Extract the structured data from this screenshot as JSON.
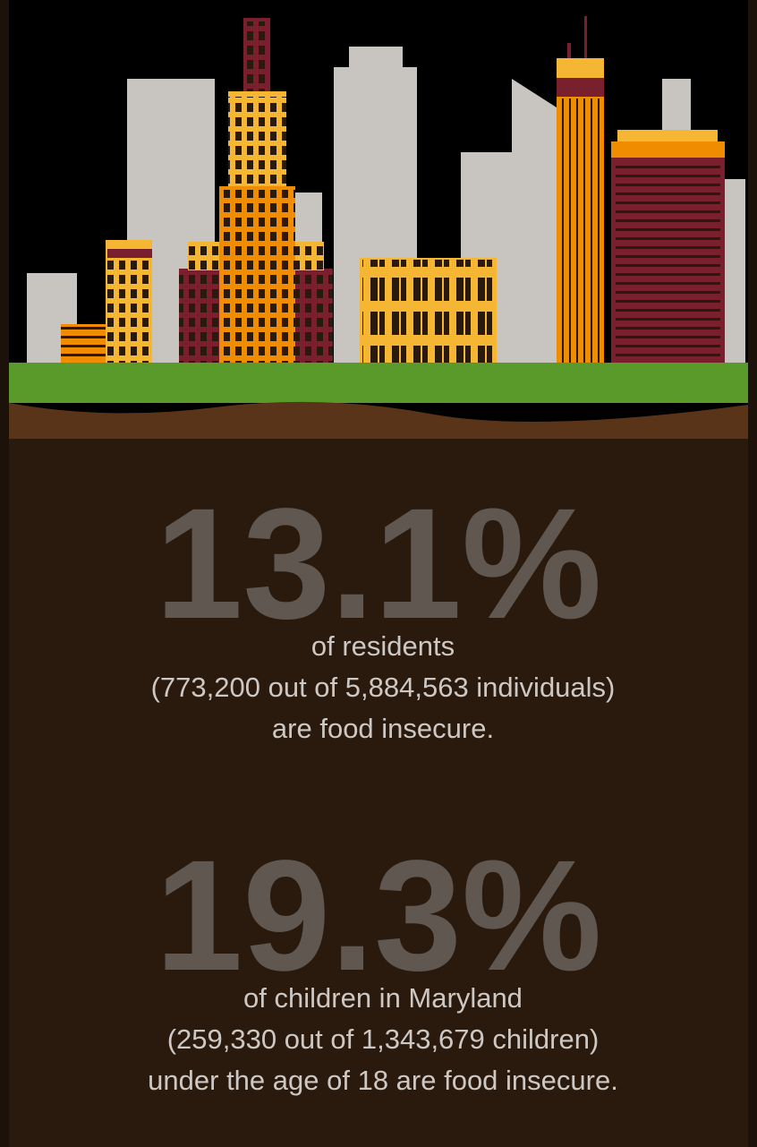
{
  "stats": [
    {
      "figure": "13.1%",
      "lines": [
        "of residents",
        "(773,200 out of 5,884,563 individuals)",
        "are food insecure."
      ]
    },
    {
      "figure": "19.3%",
      "lines": [
        "of children in Maryland",
        "(259,330 out of 1,343,679 children)",
        "under the age of 18 are food insecure."
      ]
    }
  ]
}
